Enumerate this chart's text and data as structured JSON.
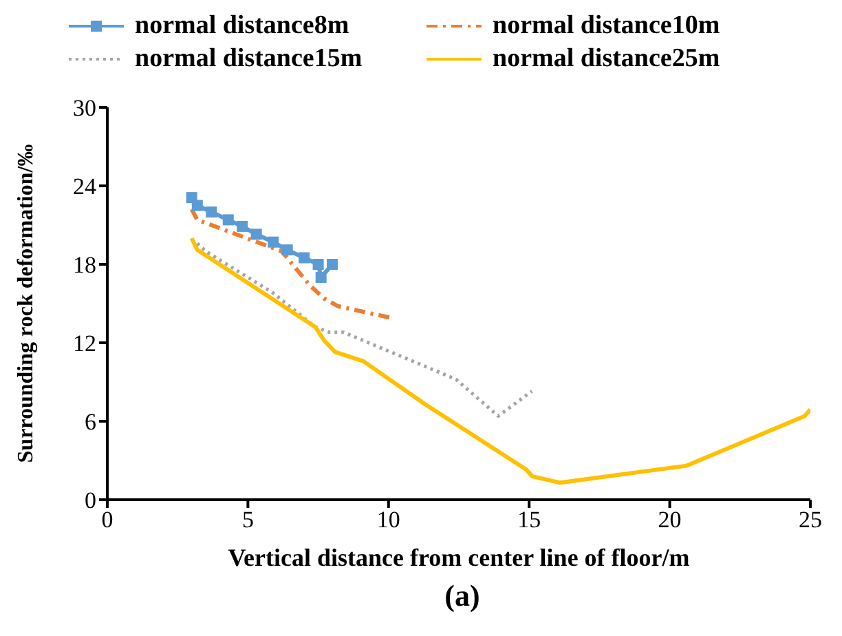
{
  "chart_data": {
    "type": "line",
    "xlabel": "Vertical distance from center line of floor/m",
    "ylabel": "Surrounding rock deformation/‰",
    "annotations": [
      "(a)"
    ],
    "xlim": [
      0,
      25
    ],
    "xticks": [
      0,
      5,
      10,
      15,
      20,
      25
    ],
    "ylim": [
      0,
      30
    ],
    "yticks": [
      0,
      6,
      12,
      18,
      24,
      30
    ],
    "legend": "top",
    "series": [
      {
        "name": "normal distance8m",
        "color": "#5b9bd5",
        "marker": "square",
        "line_style": "solid",
        "x": [
          3.0,
          3.2,
          3.7,
          4.3,
          4.8,
          5.3,
          5.9,
          6.4,
          7.0,
          7.5,
          7.6,
          8.0
        ],
        "values": [
          23.1,
          22.5,
          22.0,
          21.4,
          20.9,
          20.3,
          19.7,
          19.1,
          18.5,
          18.0,
          17.0,
          18.0
        ]
      },
      {
        "name": "normal distance10m",
        "color": "#ed7d31",
        "marker": "none",
        "line_style": "dashdot",
        "x": [
          3.0,
          3.2,
          6.2,
          7.2,
          7.7,
          8.2,
          10.1
        ],
        "values": [
          22.2,
          21.4,
          19.0,
          16.4,
          15.4,
          14.8,
          13.9
        ]
      },
      {
        "name": "normal distance15m",
        "color": "#a5a5a5",
        "marker": "none",
        "line_style": "dotted",
        "x": [
          3.2,
          3.5,
          5.9,
          7.4,
          7.9,
          8.4,
          11.3,
          12.4,
          13.9,
          15.1
        ],
        "values": [
          19.6,
          19.0,
          15.8,
          13.2,
          12.8,
          12.8,
          10.2,
          9.2,
          6.4,
          8.3
        ]
      },
      {
        "name": "normal distance25m",
        "color": "#ffc000",
        "marker": "none",
        "line_style": "solid",
        "x": [
          3.0,
          3.2,
          7.4,
          7.7,
          8.1,
          9.1,
          11.3,
          13.1,
          14.9,
          15.1,
          16.1,
          20.6,
          24.8,
          25.0
        ],
        "values": [
          20.0,
          19.1,
          13.2,
          12.2,
          11.3,
          10.6,
          7.3,
          4.8,
          2.3,
          1.8,
          1.3,
          2.6,
          6.4,
          6.9
        ]
      }
    ]
  }
}
